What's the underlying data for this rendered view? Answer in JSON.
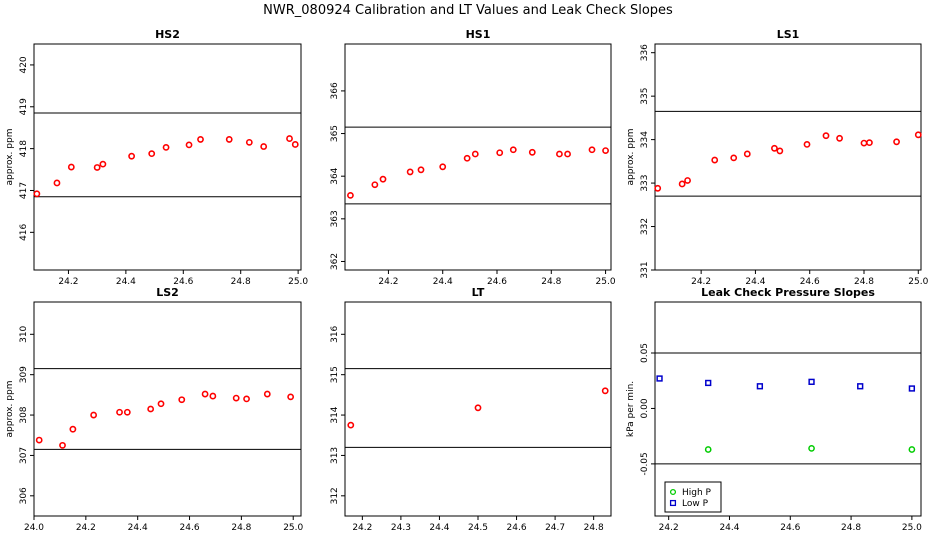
{
  "title": "NWR_080924  Calibration and LT Values and Leak Check Slopes",
  "colors": {
    "point_red": "#ff0000",
    "high_p": "#00cc00",
    "low_p": "#0000cc",
    "line": "#000000"
  },
  "chart_data": [
    {
      "id": "hs2",
      "type": "scatter",
      "title": "HS2",
      "ylabel": "approx. ppm",
      "xlim": [
        24.08,
        25.01
      ],
      "ylim": [
        415.1,
        420.5
      ],
      "xticks": [
        "24.2",
        "24.4",
        "24.6",
        "24.8",
        "25.0"
      ],
      "yticks": [
        "416",
        "417",
        "418",
        "419",
        "420"
      ],
      "hlines": [
        416.85,
        418.85
      ],
      "series": [
        {
          "color": "#ff0000",
          "x": [
            24.09,
            24.16,
            24.21,
            24.3,
            24.32,
            24.42,
            24.49,
            24.54,
            24.62,
            24.66,
            24.76,
            24.83,
            24.88,
            24.97,
            24.99
          ],
          "y": [
            416.92,
            417.18,
            417.56,
            417.55,
            417.63,
            417.82,
            417.88,
            418.03,
            418.09,
            418.22,
            418.22,
            418.15,
            418.05,
            418.24,
            418.1
          ]
        }
      ]
    },
    {
      "id": "hs1",
      "type": "scatter",
      "title": "HS1",
      "ylabel": "",
      "xlim": [
        24.04,
        25.02
      ],
      "ylim": [
        361.8,
        367.1
      ],
      "xticks": [
        "24.2",
        "24.4",
        "24.6",
        "24.8",
        "25.0"
      ],
      "yticks": [
        "362",
        "363",
        "364",
        "365",
        "366"
      ],
      "hlines": [
        363.35,
        365.15
      ],
      "series": [
        {
          "color": "#ff0000",
          "x": [
            24.06,
            24.15,
            24.18,
            24.28,
            24.32,
            24.4,
            24.49,
            24.52,
            24.61,
            24.66,
            24.73,
            24.83,
            24.86,
            24.95,
            25.0
          ],
          "y": [
            363.55,
            363.8,
            363.93,
            364.1,
            364.15,
            364.22,
            364.42,
            364.52,
            364.55,
            364.62,
            364.56,
            364.52,
            364.52,
            364.62,
            364.6
          ]
        }
      ]
    },
    {
      "id": "ls1",
      "type": "scatter",
      "title": "LS1",
      "ylabel": "approx. ppm",
      "xlim": [
        24.03,
        25.01
      ],
      "ylim": [
        331.0,
        336.2
      ],
      "xticks": [
        "24.2",
        "24.4",
        "24.6",
        "24.8",
        "25.0"
      ],
      "yticks": [
        "331",
        "332",
        "333",
        "334",
        "335",
        "336"
      ],
      "hlines": [
        332.7,
        334.65
      ],
      "series": [
        {
          "color": "#ff0000",
          "x": [
            24.04,
            24.13,
            24.15,
            24.25,
            24.32,
            24.37,
            24.47,
            24.49,
            24.59,
            24.66,
            24.71,
            24.8,
            24.82,
            24.92,
            25.0
          ],
          "y": [
            332.88,
            332.98,
            333.06,
            333.53,
            333.58,
            333.67,
            333.8,
            333.74,
            333.89,
            334.09,
            334.03,
            333.92,
            333.93,
            333.95,
            334.11
          ]
        }
      ]
    },
    {
      "id": "ls2",
      "type": "scatter",
      "title": "LS2",
      "ylabel": "approx. ppm",
      "xlim": [
        24.0,
        25.03
      ],
      "ylim": [
        305.5,
        310.8
      ],
      "xticks": [
        "24.0",
        "24.2",
        "24.4",
        "24.6",
        "24.8",
        "25.0"
      ],
      "yticks": [
        "306",
        "307",
        "308",
        "309",
        "310"
      ],
      "hlines": [
        307.15,
        309.15
      ],
      "series": [
        {
          "color": "#ff0000",
          "x": [
            24.02,
            24.11,
            24.15,
            24.23,
            24.33,
            24.36,
            24.45,
            24.49,
            24.57,
            24.66,
            24.69,
            24.78,
            24.82,
            24.9,
            24.99
          ],
          "y": [
            307.38,
            307.25,
            307.65,
            308.0,
            308.07,
            308.07,
            308.15,
            308.28,
            308.38,
            308.52,
            308.47,
            308.42,
            308.4,
            308.52,
            308.45
          ]
        }
      ]
    },
    {
      "id": "lt",
      "type": "scatter",
      "title": "LT",
      "ylabel": "",
      "xlim": [
        24.155,
        24.845
      ],
      "ylim": [
        311.5,
        316.8
      ],
      "xticks": [
        "24.2",
        "24.3",
        "24.4",
        "24.5",
        "24.6",
        "24.7",
        "24.8"
      ],
      "yticks": [
        "312",
        "313",
        "314",
        "315",
        "316"
      ],
      "hlines": [
        313.2,
        315.15
      ],
      "series": [
        {
          "color": "#ff0000",
          "x": [
            24.17,
            24.5,
            24.83
          ],
          "y": [
            313.75,
            314.18,
            314.6
          ]
        }
      ]
    },
    {
      "id": "leak",
      "type": "scatter",
      "title": "Leak Check Pressure Slopes",
      "ylabel": "kPa per min.",
      "xlim": [
        24.155,
        25.03
      ],
      "ylim": [
        -0.097,
        0.096
      ],
      "xticks": [
        "24.2",
        "24.4",
        "24.6",
        "24.8",
        "25.0"
      ],
      "yticks": [
        "-0.05",
        "0.00",
        "0.05"
      ],
      "hlines": [
        0.05,
        -0.05
      ],
      "legend": {
        "position": "bottom-left",
        "entries": [
          "High P",
          "Low P"
        ]
      },
      "series": [
        {
          "name": "High P",
          "color": "#00cc00",
          "x": [
            24.33,
            24.67,
            25.0
          ],
          "y": [
            -0.037,
            -0.036,
            -0.037
          ]
        },
        {
          "name": "Low P",
          "color": "#0000cc",
          "x": [
            24.17,
            24.33,
            24.5,
            24.67,
            24.83,
            25.0
          ],
          "y": [
            0.027,
            0.023,
            0.02,
            0.024,
            0.02,
            0.018
          ]
        }
      ]
    }
  ]
}
